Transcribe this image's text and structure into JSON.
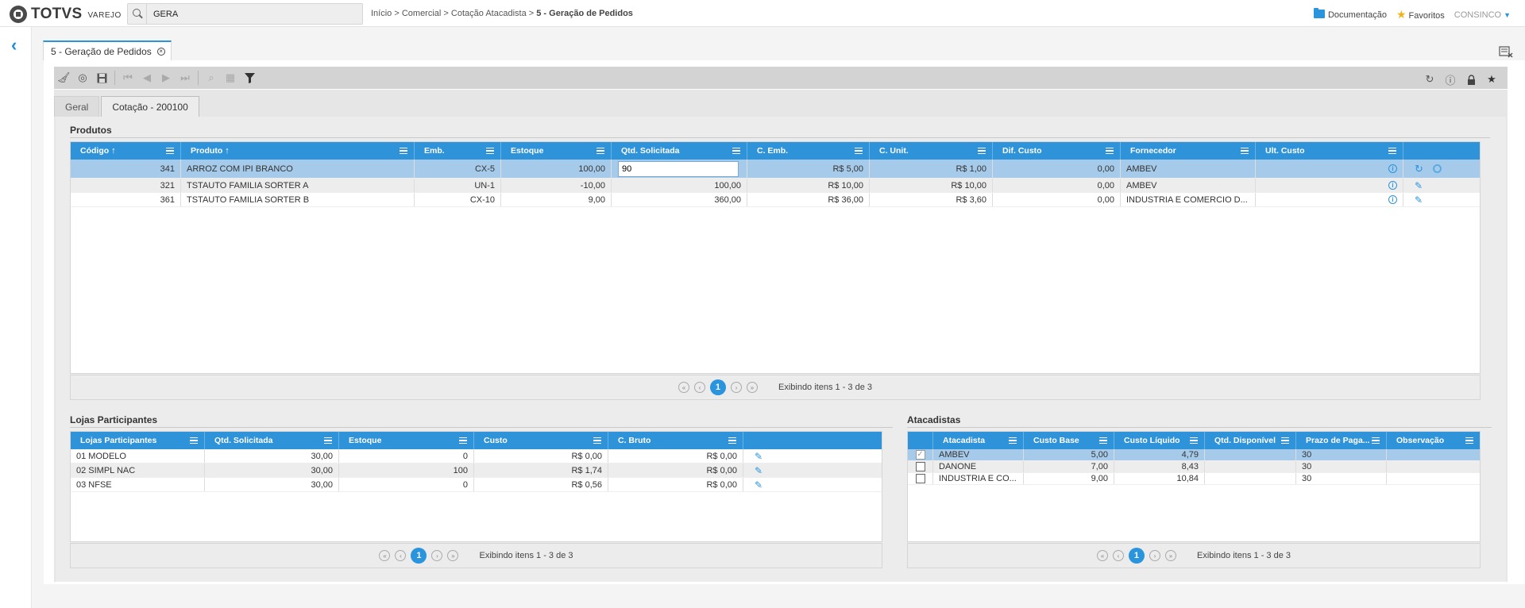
{
  "header": {
    "logo_text": "TOTVS",
    "logo_sub": "VAREJO",
    "search_value": "GERA",
    "breadcrumb": [
      "Início",
      "Comercial",
      "Cotação Atacadista",
      "5 - Geração de Pedidos"
    ],
    "documentation": "Documentação",
    "favorites": "Favoritos",
    "user": "CONSINCO"
  },
  "page_tab": "5 - Geração de Pedidos",
  "subtabs": [
    "Geral",
    "Cotação - 200100"
  ],
  "produtos": {
    "title": "Produtos",
    "columns": [
      "Código",
      "Produto",
      "Emb.",
      "Estoque",
      "Qtd. Solicitada",
      "C. Emb.",
      "C. Unit.",
      "Dif. Custo",
      "Fornecedor",
      "Ult. Custo"
    ],
    "rows": [
      [
        "341",
        "ARROZ COM IPI BRANCO",
        "CX-5",
        "100,00",
        "90",
        "R$ 5,00",
        "R$ 1,00",
        "0,00",
        "AMBEV",
        ""
      ],
      [
        "321",
        "TSTAUTO FAMILIA SORTER A",
        "UN-1",
        "-10,00",
        "100,00",
        "R$ 10,00",
        "R$ 10,00",
        "0,00",
        "AMBEV",
        ""
      ],
      [
        "361",
        "TSTAUTO FAMILIA SORTER B",
        "CX-10",
        "9,00",
        "360,00",
        "R$ 36,00",
        "R$ 3,60",
        "0,00",
        "INDUSTRIA E COMERCIO D...",
        ""
      ]
    ],
    "pager": {
      "page": "1",
      "text": "Exibindo itens 1 - 3 de 3"
    }
  },
  "lojas": {
    "title": "Lojas Participantes",
    "columns": [
      "Lojas Participantes",
      "Qtd. Solicitada",
      "Estoque",
      "Custo",
      "C. Bruto"
    ],
    "rows": [
      [
        "01 MODELO",
        "30,00",
        "0",
        "R$ 0,00",
        "R$ 0,00"
      ],
      [
        "02 SIMPL NAC",
        "30,00",
        "100",
        "R$ 1,74",
        "R$ 0,00"
      ],
      [
        "03 NFSE",
        "30,00",
        "0",
        "R$ 0,56",
        "R$ 0,00"
      ]
    ],
    "pager": {
      "page": "1",
      "text": "Exibindo itens 1 - 3 de 3"
    }
  },
  "atacadistas": {
    "title": "Atacadistas",
    "columns": [
      "Atacadista",
      "Custo Base",
      "Custo Líquido",
      "Qtd. Disponível",
      "Prazo de Paga...",
      "Observação"
    ],
    "rows": [
      {
        "checked": true,
        "cells": [
          "AMBEV",
          "5,00",
          "4,79",
          "",
          "30",
          ""
        ]
      },
      {
        "checked": false,
        "cells": [
          "DANONE",
          "7,00",
          "8,43",
          "",
          "30",
          ""
        ]
      },
      {
        "checked": false,
        "cells": [
          "INDUSTRIA E CO...",
          "9,00",
          "10,84",
          "",
          "30",
          ""
        ]
      }
    ],
    "pager": {
      "page": "1",
      "text": "Exibindo itens 1 - 3 de 3"
    }
  },
  "colors": {
    "accent": "#2a94dd",
    "selected_row": "#a6cbea"
  }
}
